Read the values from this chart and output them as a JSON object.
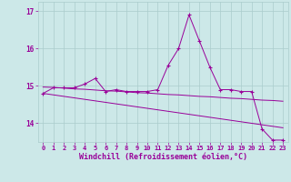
{
  "x": [
    0,
    1,
    2,
    3,
    4,
    5,
    6,
    7,
    8,
    9,
    10,
    11,
    12,
    13,
    14,
    15,
    16,
    17,
    18,
    19,
    20,
    21,
    22,
    23
  ],
  "y_main": [
    14.8,
    14.95,
    14.95,
    14.95,
    15.05,
    15.2,
    14.85,
    14.9,
    14.85,
    14.85,
    14.85,
    14.9,
    15.55,
    16.0,
    16.9,
    16.2,
    15.5,
    14.9,
    14.9,
    14.85,
    14.85,
    13.85,
    13.55,
    13.55
  ],
  "y_trend1": [
    14.97,
    14.96,
    14.94,
    14.92,
    14.91,
    14.89,
    14.87,
    14.86,
    14.84,
    14.82,
    14.81,
    14.79,
    14.77,
    14.76,
    14.74,
    14.72,
    14.71,
    14.69,
    14.67,
    14.66,
    14.64,
    14.62,
    14.61,
    14.59
  ],
  "y_trend2": [
    14.8,
    14.76,
    14.72,
    14.68,
    14.64,
    14.6,
    14.56,
    14.52,
    14.48,
    14.44,
    14.4,
    14.36,
    14.32,
    14.28,
    14.24,
    14.2,
    14.16,
    14.12,
    14.08,
    14.04,
    14.0,
    13.96,
    13.92,
    13.88
  ],
  "color_main": "#990099",
  "color_trend": "#990099",
  "bg_color": "#cce8e8",
  "grid_color": "#aacccc",
  "xlabel": "Windchill (Refroidissement éolien,°C)",
  "ylim": [
    13.5,
    17.25
  ],
  "xlim": [
    -0.5,
    23.5
  ],
  "yticks": [
    14,
    15,
    16,
    17
  ],
  "xticks": [
    0,
    1,
    2,
    3,
    4,
    5,
    6,
    7,
    8,
    9,
    10,
    11,
    12,
    13,
    14,
    15,
    16,
    17,
    18,
    19,
    20,
    21,
    22,
    23
  ],
  "tick_color": "#990099",
  "label_color": "#990099"
}
